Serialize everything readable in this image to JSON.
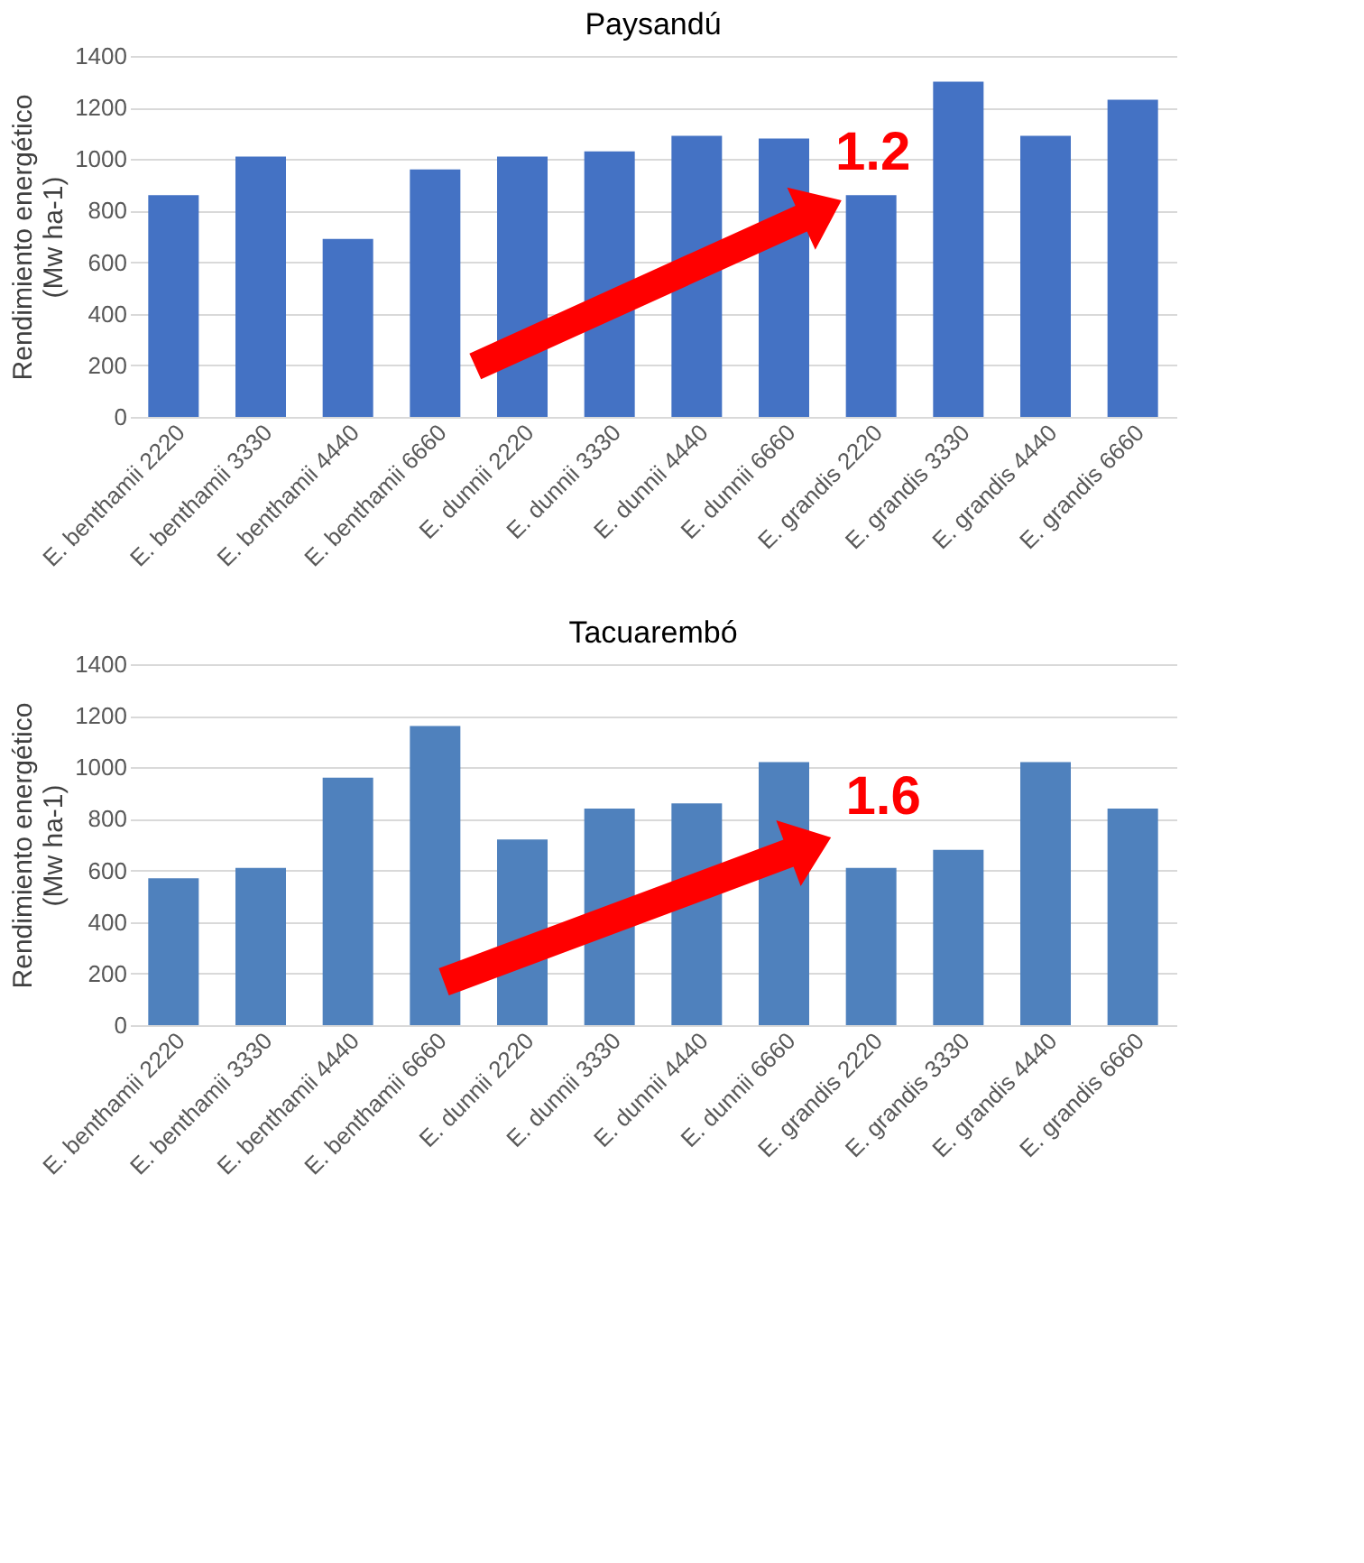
{
  "chart_data": [
    {
      "type": "bar",
      "title": "Paysandú",
      "ylabel": "Rendimiento energético\n(Mw ha-1)",
      "categories": [
        "E. benthamii 2220",
        "E. benthamii 3330",
        "E. benthamii 4440",
        "E. benthamii 6660",
        "E. dunnii 2220",
        "E. dunnii 3330",
        "E. dunnii 4440",
        "E. dunnii 6660",
        "E. grandis 2220",
        "E. grandis 3330",
        "E. grandis 4440",
        "E. grandis 6660"
      ],
      "values": [
        860,
        1010,
        690,
        960,
        1010,
        1030,
        1090,
        1080,
        860,
        1300,
        1090,
        1230
      ],
      "color": "#4472c4",
      "ylim": [
        0,
        1400
      ],
      "yticks": [
        0,
        200,
        400,
        600,
        800,
        1000,
        1200,
        1400
      ],
      "grid": "y",
      "annotations": [
        "1.2"
      ]
    },
    {
      "type": "bar",
      "title": "Tacuarembó",
      "ylabel": "Rendimiento energético\n(Mw ha-1)",
      "categories": [
        "E. benthamii 2220",
        "E. benthamii 3330",
        "E. benthamii 4440",
        "E. benthamii 6660",
        "E. dunnii 2220",
        "E. dunnii 3330",
        "E. dunnii 4440",
        "E. dunnii 6660",
        "E. grandis 2220",
        "E. grandis 3330",
        "E. grandis 4440",
        "E. grandis 6660"
      ],
      "values": [
        570,
        610,
        960,
        1160,
        720,
        840,
        860,
        1020,
        610,
        680,
        1020,
        840
      ],
      "color": "#4f81bd",
      "ylim": [
        0,
        1400
      ],
      "yticks": [
        0,
        200,
        400,
        600,
        800,
        1000,
        1200,
        1400
      ],
      "grid": "y",
      "annotations": [
        "1.6"
      ]
    }
  ]
}
